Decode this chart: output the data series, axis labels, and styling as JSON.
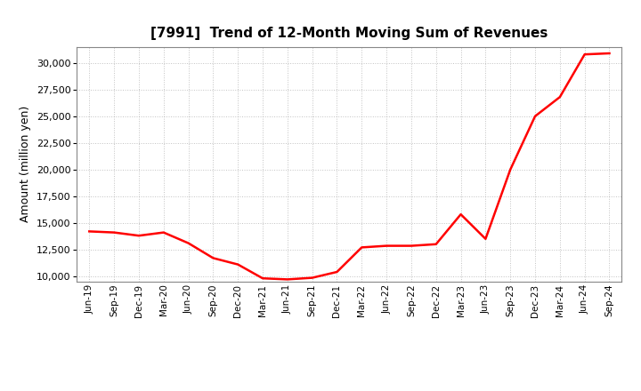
{
  "title": "[7991]  Trend of 12-Month Moving Sum of Revenues",
  "ylabel": "Amount (million yen)",
  "line_color": "#FF0000",
  "background_color": "#FFFFFF",
  "plot_bg_color": "#FFFFFF",
  "grid_color": "#999999",
  "xlabels": [
    "Jun-19",
    "Sep-19",
    "Dec-19",
    "Mar-20",
    "Jun-20",
    "Sep-20",
    "Dec-20",
    "Mar-21",
    "Jun-21",
    "Sep-21",
    "Dec-21",
    "Mar-22",
    "Jun-22",
    "Sep-22",
    "Dec-22",
    "Mar-23",
    "Jun-23",
    "Sep-23",
    "Dec-23",
    "Mar-24",
    "Jun-24",
    "Sep-24"
  ],
  "values": [
    14200,
    14100,
    13800,
    14100,
    13100,
    11700,
    11100,
    9800,
    9700,
    9850,
    10400,
    12700,
    12850,
    12850,
    13000,
    15800,
    13500,
    20000,
    25000,
    26800,
    30800,
    30900
  ],
  "ylim": [
    9500,
    31500
  ],
  "yticks": [
    10000,
    12500,
    15000,
    17500,
    20000,
    22500,
    25000,
    27500,
    30000
  ]
}
